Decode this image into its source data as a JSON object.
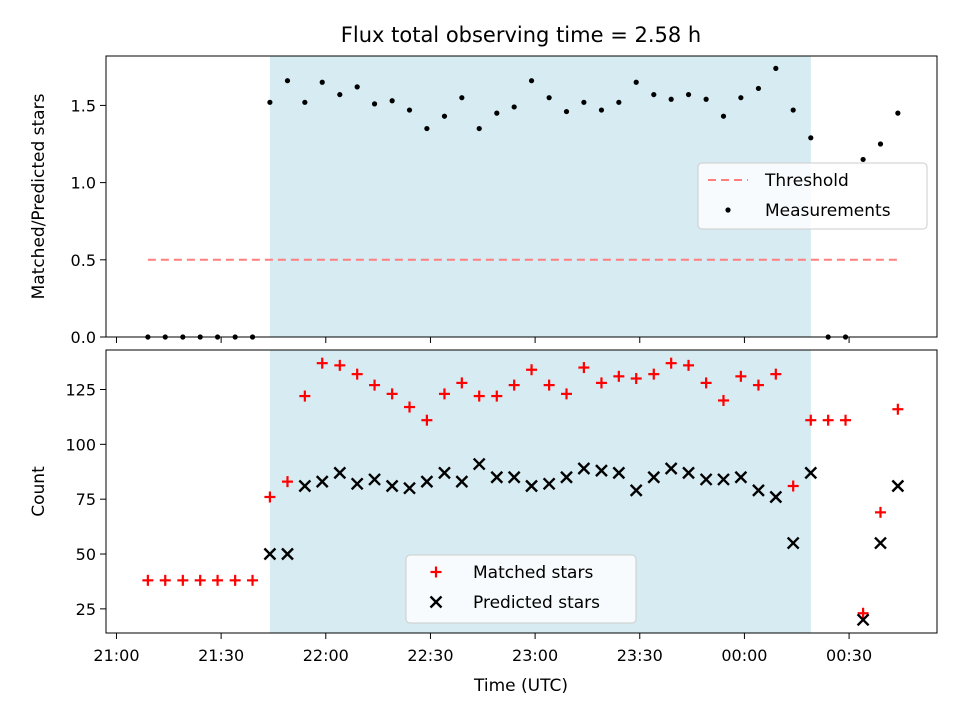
{
  "chart_data": {
    "title": "Flux total observing time = 2.58 h",
    "xlabel": "Time (UTC)",
    "x_unit": "hours (UTC) on day of 21:00 start; values >= 24 are after midnight",
    "xlim": [
      20.95,
      24.92
    ],
    "x_tick_values": [
      21.0,
      21.5,
      22.0,
      22.5,
      23.0,
      23.5,
      24.0,
      24.5
    ],
    "x_tick_labels": [
      "21:00",
      "21:30",
      "22:00",
      "22:30",
      "23:00",
      "23:30",
      "00:00",
      "00:30"
    ],
    "shaded_span": {
      "start": 21.733,
      "end": 24.317,
      "color": "#add8e6",
      "opacity": 0.5
    },
    "panels": [
      {
        "type": "scatter",
        "ylabel": "Matched/Predicted stars",
        "ylim": [
          0.0,
          1.82
        ],
        "y_ticks": [
          0.0,
          0.5,
          1.0,
          1.5
        ],
        "y_tick_labels": [
          "0.0",
          "0.5",
          "1.0",
          "1.5"
        ],
        "threshold": {
          "name": "Threshold",
          "value": 0.5,
          "x_start": 21.15,
          "x_end": 24.75,
          "color": "#ff7f7f",
          "dash": "8,5"
        },
        "series": [
          {
            "name": "Measurements",
            "marker": "dot",
            "color": "#000000",
            "x": [
              21.15,
              21.233,
              21.317,
              21.4,
              21.483,
              21.567,
              21.65,
              21.733,
              21.817,
              21.9,
              21.983,
              22.067,
              22.15,
              22.233,
              22.317,
              22.4,
              22.483,
              22.567,
              22.65,
              22.733,
              22.817,
              22.9,
              22.983,
              23.067,
              23.15,
              23.233,
              23.317,
              23.4,
              23.483,
              23.567,
              23.65,
              23.733,
              23.817,
              23.9,
              23.983,
              24.067,
              24.15,
              24.233,
              24.317,
              24.4,
              24.483,
              24.567,
              24.65,
              24.733
            ],
            "y": [
              0,
              0,
              0,
              0,
              0,
              0,
              0,
              1.52,
              1.66,
              1.52,
              1.65,
              1.57,
              1.62,
              1.51,
              1.53,
              1.47,
              1.35,
              1.43,
              1.55,
              1.35,
              1.45,
              1.49,
              1.66,
              1.55,
              1.46,
              1.52,
              1.47,
              1.52,
              1.65,
              1.57,
              1.54,
              1.57,
              1.54,
              1.43,
              1.55,
              1.61,
              1.74,
              1.47,
              1.29,
              0,
              0,
              1.15,
              1.25,
              1.45
            ]
          }
        ],
        "legend": {
          "placement": "center-right",
          "entries": [
            "Threshold",
            "Measurements"
          ]
        }
      },
      {
        "type": "scatter",
        "ylabel": "Count",
        "ylim": [
          14,
          143
        ],
        "y_ticks": [
          25,
          50,
          75,
          100,
          125
        ],
        "y_tick_labels": [
          "25",
          "50",
          "75",
          "100",
          "125"
        ],
        "series": [
          {
            "name": "Matched stars",
            "marker": "plus",
            "color": "#ff0000",
            "x": [
              21.15,
              21.233,
              21.317,
              21.4,
              21.483,
              21.567,
              21.65,
              21.733,
              21.817,
              21.9,
              21.983,
              22.067,
              22.15,
              22.233,
              22.317,
              22.4,
              22.483,
              22.567,
              22.65,
              22.733,
              22.817,
              22.9,
              22.983,
              23.067,
              23.15,
              23.233,
              23.317,
              23.4,
              23.483,
              23.567,
              23.65,
              23.733,
              23.817,
              23.9,
              23.983,
              24.067,
              24.15,
              24.233,
              24.317,
              24.4,
              24.483,
              24.567,
              24.65,
              24.733
            ],
            "y": [
              38,
              38,
              38,
              38,
              38,
              38,
              38,
              76,
              83,
              122,
              137,
              136,
              132,
              127,
              123,
              117,
              111,
              123,
              128,
              122,
              122,
              127,
              134,
              127,
              123,
              135,
              128,
              131,
              130,
              132,
              137,
              136,
              128,
              120,
              131,
              127,
              132,
              81,
              111,
              111,
              111,
              23,
              69,
              116
            ]
          },
          {
            "name": "Predicted stars",
            "marker": "x",
            "color": "#000000",
            "x": [
              21.733,
              21.817,
              21.9,
              21.983,
              22.067,
              22.15,
              22.233,
              22.317,
              22.4,
              22.483,
              22.567,
              22.65,
              22.733,
              22.817,
              22.9,
              22.983,
              23.067,
              23.15,
              23.233,
              23.317,
              23.4,
              23.483,
              23.567,
              23.65,
              23.733,
              23.817,
              23.9,
              23.983,
              24.067,
              24.15,
              24.233,
              24.317,
              24.567,
              24.65,
              24.733
            ],
            "y": [
              50,
              50,
              81,
              83,
              87,
              82,
              84,
              81,
              80,
              83,
              87,
              83,
              91,
              85,
              85,
              81,
              82,
              85,
              89,
              88,
              87,
              79,
              85,
              89,
              87,
              84,
              84,
              85,
              79,
              76,
              55,
              87,
              20,
              55,
              81
            ]
          }
        ],
        "legend": {
          "placement": "lower-center",
          "entries": [
            "Matched stars",
            "Predicted stars"
          ]
        }
      }
    ]
  }
}
